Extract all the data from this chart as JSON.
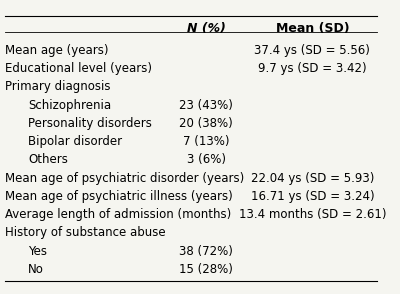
{
  "header_col1": "N (%)",
  "header_col2": "Mean (SD)",
  "rows": [
    {
      "label": "Mean age (years)",
      "indent": 0,
      "col1": "",
      "col2": "37.4 ys (SD = 5.56)"
    },
    {
      "label": "Educational level (years)",
      "indent": 0,
      "col1": "",
      "col2": "9.7 ys (SD = 3.42)"
    },
    {
      "label": "Primary diagnosis",
      "indent": 0,
      "col1": "",
      "col2": ""
    },
    {
      "label": "Schizophrenia",
      "indent": 1,
      "col1": "23 (43%)",
      "col2": ""
    },
    {
      "label": "Personality disorders",
      "indent": 1,
      "col1": "20 (38%)",
      "col2": ""
    },
    {
      "label": "Bipolar disorder",
      "indent": 1,
      "col1": "7 (13%)",
      "col2": ""
    },
    {
      "label": "Others",
      "indent": 1,
      "col1": "3 (6%)",
      "col2": ""
    },
    {
      "label": "Mean age of psychiatric disorder (years)",
      "indent": 0,
      "col1": "",
      "col2": "22.04 ys (SD = 5.93)"
    },
    {
      "label": "Mean age of psychiatric illness (years)",
      "indent": 0,
      "col1": "",
      "col2": "16.71 ys (SD = 3.24)"
    },
    {
      "label": "Average length of admission (months)",
      "indent": 0,
      "col1": "",
      "col2": "13.4 months (SD = 2.61)"
    },
    {
      "label": "History of substance abuse",
      "indent": 0,
      "col1": "",
      "col2": ""
    },
    {
      "label": "Yes",
      "indent": 1,
      "col1": "38 (72%)",
      "col2": ""
    },
    {
      "label": "No",
      "indent": 1,
      "col1": "15 (28%)",
      "col2": ""
    }
  ],
  "bg_color": "#f5f5f0",
  "table_bg": "#ffffff",
  "header_fontsize": 9,
  "row_fontsize": 8.5,
  "indent_size": 0.06
}
